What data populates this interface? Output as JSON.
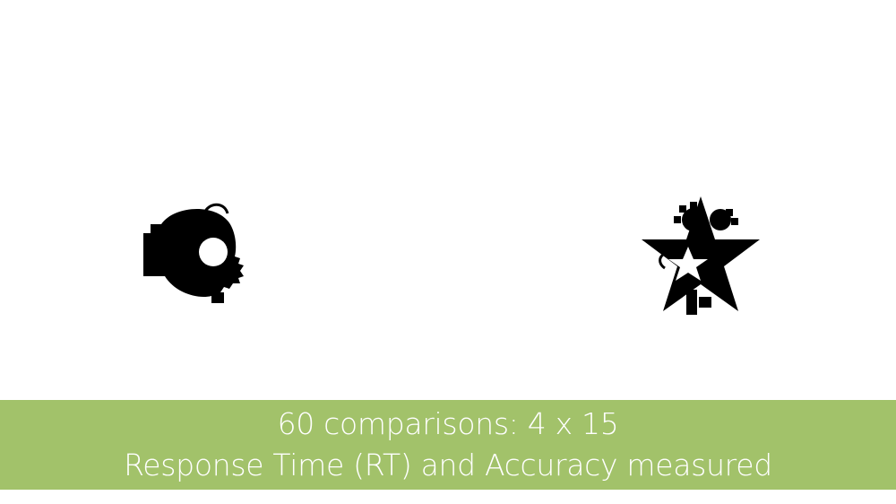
{
  "slide": {
    "background_color": "#ffffff"
  },
  "stimuli": {
    "left": {
      "icon": "abstract-round-shape-icon",
      "color": "#000000"
    },
    "right": {
      "icon": "abstract-star-shape-icon",
      "color": "#000000"
    }
  },
  "caption": {
    "band_color": "#a2c26a",
    "text_color": "#ffffff",
    "line1": "60 comparisons: 4 x 15",
    "line2": "Response Time (RT) and Accuracy measured"
  }
}
